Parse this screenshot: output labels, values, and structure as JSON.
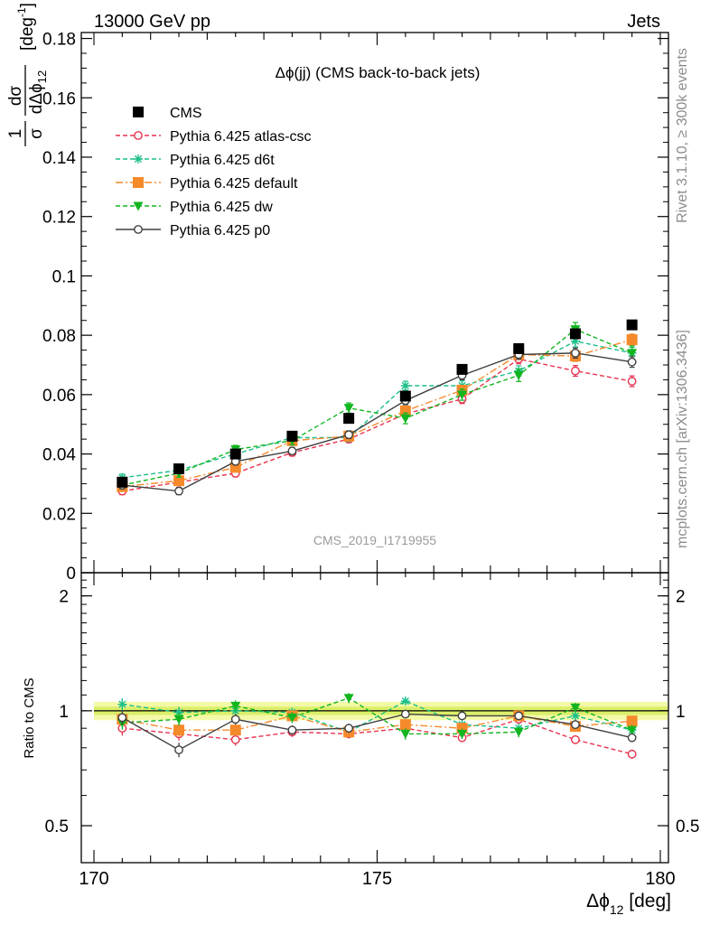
{
  "header": {
    "energy_label": "13000 GeV pp",
    "process_label": "Jets",
    "plot_title": "Δϕ(jj) (CMS back-to-back jets)",
    "analysis_id": "CMS_2019_I1719955",
    "rivet_label": "Rivet 3.1.10, ≥ 300k events",
    "mcplots_label": "mcplots.cern.ch [arXiv:1306.3436]"
  },
  "chart_data": {
    "type": "scatter",
    "x": [
      170.5,
      171.5,
      172.5,
      173.5,
      174.5,
      175.5,
      176.5,
      177.5,
      178.5,
      179.5
    ],
    "xlabel": "Δϕ12 [deg]",
    "xlim": [
      170,
      180
    ],
    "xticks": [
      "170",
      "175",
      "180"
    ],
    "main": {
      "ylabel": "1/σ dσ/dΔϕ12 [deg-1]",
      "ylim": [
        0,
        0.182
      ],
      "yticks": [
        "0",
        "0.02",
        "0.04",
        "0.06",
        "0.08",
        "0.1",
        "0.12",
        "0.14",
        "0.16",
        "0.18"
      ]
    },
    "ratio": {
      "ylabel": "Ratio to CMS",
      "scale": "log",
      "ylim": [
        0.4,
        2.3
      ],
      "yticks": [
        "0.5",
        "1",
        "2"
      ]
    },
    "legend_position": "top-left",
    "series": [
      {
        "name": "CMS",
        "color": "#000000",
        "marker": "square",
        "line": "none",
        "values": [
          0.0305,
          0.035,
          0.04,
          0.046,
          0.052,
          0.0595,
          0.0685,
          0.0755,
          0.0805,
          0.0835
        ],
        "errors": [
          0.001,
          0.001,
          0.001,
          0.001,
          0.001,
          0.001,
          0.001,
          0.001,
          0.001,
          0.001
        ],
        "ratio": [
          1,
          1,
          1,
          1,
          1,
          1,
          1,
          1,
          1,
          1
        ]
      },
      {
        "name": "Pythia 6.425 atlas-csc",
        "color": "#e8324e",
        "marker": "open-circle",
        "line": "dashed",
        "values": [
          0.0275,
          0.0305,
          0.0335,
          0.0405,
          0.045,
          0.0535,
          0.0585,
          0.072,
          0.068,
          0.0645
        ],
        "errors": [
          0.0012,
          0.0012,
          0.0012,
          0.0012,
          0.0012,
          0.0014,
          0.0015,
          0.0016,
          0.0018,
          0.0018
        ],
        "ratio": [
          0.9,
          0.87,
          0.84,
          0.88,
          0.87,
          0.9,
          0.85,
          0.95,
          0.84,
          0.77
        ]
      },
      {
        "name": "Pythia 6.425 d6t",
        "color": "#1bbf8a",
        "marker": "star",
        "line": "dashed",
        "values": [
          0.032,
          0.0345,
          0.04,
          0.0455,
          0.0455,
          0.063,
          0.063,
          0.068,
          0.078,
          0.074
        ],
        "errors": [
          0.0012,
          0.0012,
          0.0013,
          0.0013,
          0.0013,
          0.0015,
          0.0016,
          0.0017,
          0.0019,
          0.0019
        ],
        "ratio": [
          1.04,
          0.99,
          1.0,
          0.99,
          0.88,
          1.06,
          0.92,
          0.9,
          0.97,
          0.89
        ]
      },
      {
        "name": "Pythia 6.425 default",
        "color": "#f58a2b",
        "marker": "square",
        "line": "dashdot",
        "values": [
          0.029,
          0.031,
          0.0355,
          0.0445,
          0.046,
          0.0545,
          0.0615,
          0.0735,
          0.073,
          0.0785
        ],
        "errors": [
          0.0012,
          0.0012,
          0.0012,
          0.0012,
          0.0013,
          0.0014,
          0.0015,
          0.0017,
          0.0018,
          0.0019
        ],
        "ratio": [
          0.95,
          0.89,
          0.89,
          0.97,
          0.88,
          0.92,
          0.9,
          0.97,
          0.91,
          0.94
        ]
      },
      {
        "name": "Pythia 6.425 dw",
        "color": "#12b51f",
        "marker": "down-triangle",
        "line": "dashed",
        "values": [
          0.0295,
          0.0335,
          0.0415,
          0.0445,
          0.0555,
          0.052,
          0.06,
          0.0665,
          0.082,
          0.074
        ],
        "errors": [
          0.0012,
          0.0013,
          0.0014,
          0.0015,
          0.0017,
          0.0018,
          0.0019,
          0.0021,
          0.0023,
          0.0024
        ],
        "ratio": [
          0.93,
          0.95,
          1.03,
          0.96,
          1.08,
          0.87,
          0.87,
          0.88,
          1.02,
          0.89
        ]
      },
      {
        "name": "Pythia 6.425 p0",
        "color": "#404040",
        "marker": "open-circle",
        "line": "solid",
        "values": [
          0.0295,
          0.0275,
          0.0375,
          0.041,
          0.0465,
          0.058,
          0.0665,
          0.0735,
          0.074,
          0.071
        ],
        "errors": [
          0.0012,
          0.0012,
          0.0012,
          0.0012,
          0.0013,
          0.0014,
          0.0015,
          0.0016,
          0.0017,
          0.0018
        ],
        "ratio": [
          0.96,
          0.79,
          0.95,
          0.89,
          0.9,
          0.98,
          0.97,
          0.97,
          0.92,
          0.85
        ]
      }
    ]
  }
}
